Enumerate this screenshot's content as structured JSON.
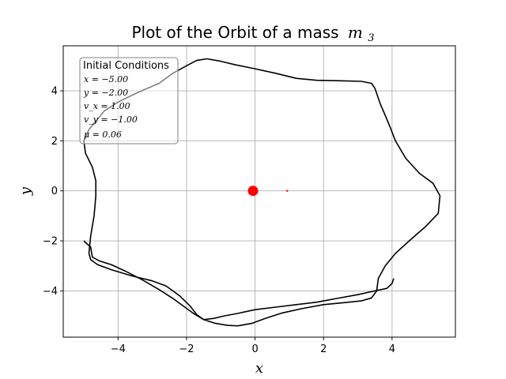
{
  "chart_data": {
    "type": "line",
    "title": "Plot of the Orbit of a mass",
    "title_math_base": "m",
    "title_math_sub": "3",
    "xlabel": "x",
    "ylabel": "y",
    "xlim": [
      -5.6,
      5.85
    ],
    "ylim": [
      -5.85,
      5.8
    ],
    "xticks": [
      -4,
      -2,
      0,
      2,
      4
    ],
    "yticks": [
      -4,
      -2,
      0,
      2,
      4
    ],
    "xtick_labels": [
      "−4",
      "−2",
      "0",
      "2",
      "4"
    ],
    "ytick_labels": [
      "−4",
      "−2",
      "0",
      "2",
      "4"
    ],
    "grid": true,
    "legend_box": {
      "title": "Initial Conditions",
      "lines": [
        "x = −5.00",
        "y = −2.00",
        "v_x = 1.00",
        "v_y = −1.00",
        "μ = 0.06"
      ],
      "placement": "top-left"
    },
    "bodies": [
      {
        "name": "large-mass",
        "x": -0.06,
        "y": 0.0,
        "color": "#ff0000",
        "size": "large"
      },
      {
        "name": "small-mass",
        "x": 0.94,
        "y": 0.0,
        "color": "#ff0000",
        "size": "small"
      }
    ],
    "orbit": {
      "color": "#000000",
      "points": [
        [
          -5.0,
          -2.0
        ],
        [
          -4.8,
          -2.25
        ],
        [
          -4.75,
          -2.65
        ],
        [
          -4.55,
          -2.8
        ],
        [
          -4.2,
          -2.95
        ],
        [
          -3.8,
          -3.2
        ],
        [
          -3.3,
          -3.55
        ],
        [
          -2.8,
          -3.95
        ],
        [
          -2.4,
          -4.3
        ],
        [
          -2.1,
          -4.6
        ],
        [
          -1.8,
          -4.9
        ],
        [
          -1.5,
          -5.15
        ],
        [
          -1.15,
          -5.3
        ],
        [
          -0.8,
          -5.38
        ],
        [
          -0.5,
          -5.4
        ],
        [
          -0.1,
          -5.3
        ],
        [
          0.3,
          -5.1
        ],
        [
          0.8,
          -4.88
        ],
        [
          1.4,
          -4.7
        ],
        [
          2.0,
          -4.55
        ],
        [
          2.6,
          -4.47
        ],
        [
          3.1,
          -4.4
        ],
        [
          3.4,
          -4.28
        ],
        [
          3.55,
          -4.0
        ],
        [
          3.6,
          -3.5
        ],
        [
          3.8,
          -3.0
        ],
        [
          4.1,
          -2.5
        ],
        [
          4.5,
          -2.0
        ],
        [
          5.0,
          -1.4
        ],
        [
          5.35,
          -0.9
        ],
        [
          5.4,
          -0.2
        ],
        [
          5.2,
          0.3
        ],
        [
          4.8,
          0.7
        ],
        [
          4.4,
          1.3
        ],
        [
          4.1,
          2.0
        ],
        [
          3.9,
          2.7
        ],
        [
          3.65,
          3.5
        ],
        [
          3.5,
          4.1
        ],
        [
          3.4,
          4.3
        ],
        [
          3.1,
          4.38
        ],
        [
          2.5,
          4.4
        ],
        [
          1.8,
          4.42
        ],
        [
          1.2,
          4.5
        ],
        [
          0.6,
          4.7
        ],
        [
          0.0,
          4.88
        ],
        [
          -0.6,
          5.05
        ],
        [
          -1.0,
          5.18
        ],
        [
          -1.4,
          5.28
        ],
        [
          -1.7,
          5.22
        ],
        [
          -2.0,
          5.0
        ],
        [
          -2.4,
          4.7
        ],
        [
          -2.8,
          4.3
        ],
        [
          -3.4,
          3.95
        ],
        [
          -4.0,
          3.55
        ],
        [
          -4.4,
          3.2
        ],
        [
          -4.85,
          2.45
        ],
        [
          -5.0,
          2.0
        ],
        [
          -4.95,
          1.5
        ],
        [
          -4.75,
          0.95
        ],
        [
          -4.65,
          0.4
        ],
        [
          -4.65,
          -0.2
        ],
        [
          -4.7,
          -1.0
        ],
        [
          -4.8,
          -1.8
        ],
        [
          -4.85,
          -2.5
        ],
        [
          -4.8,
          -2.75
        ],
        [
          -4.6,
          -2.95
        ],
        [
          -4.2,
          -3.15
        ],
        [
          -3.6,
          -3.4
        ],
        [
          -3.0,
          -3.6
        ],
        [
          -2.6,
          -3.8
        ],
        [
          -2.2,
          -4.2
        ],
        [
          -1.9,
          -4.6
        ],
        [
          -1.7,
          -4.95
        ],
        [
          -1.5,
          -5.15
        ],
        [
          -1.2,
          -5.1
        ],
        [
          -0.9,
          -5.0
        ],
        [
          -0.5,
          -4.9
        ],
        [
          0.0,
          -4.75
        ],
        [
          0.6,
          -4.65
        ],
        [
          1.2,
          -4.55
        ],
        [
          1.8,
          -4.45
        ],
        [
          2.4,
          -4.3
        ],
        [
          3.0,
          -4.15
        ],
        [
          3.5,
          -4.0
        ],
        [
          3.85,
          -3.9
        ],
        [
          4.0,
          -3.7
        ],
        [
          4.05,
          -3.5
        ]
      ]
    }
  }
}
